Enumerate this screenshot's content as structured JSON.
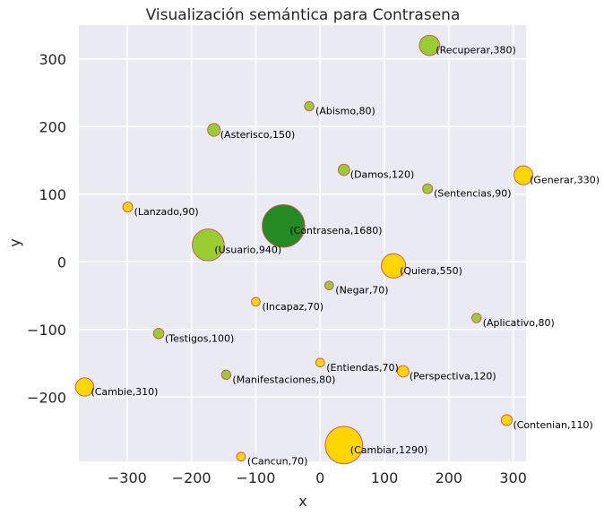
{
  "chart_data": {
    "type": "scatter",
    "title": "Visualización semántica para Contrasena",
    "xlabel": "x",
    "ylabel": "y",
    "xlim": [
      -375,
      320
    ],
    "ylim": [
      -295,
      350
    ],
    "xticks": [
      -300,
      -200,
      -100,
      0,
      100,
      200,
      300
    ],
    "yticks": [
      -200,
      -100,
      0,
      100,
      200,
      300
    ],
    "xtick_labels": [
      "−300",
      "−200",
      "−100",
      "0",
      "100",
      "200",
      "300"
    ],
    "ytick_labels": [
      "−200",
      "−100",
      "0",
      "100",
      "200",
      "300"
    ],
    "grid": true,
    "background_color": "#EAEAF2",
    "grid_color": "#FFFFFF",
    "marker_edge_color": "#CD5C5C",
    "points": [
      {
        "word": "Recuperar",
        "value": 380,
        "x": 170,
        "y": 320,
        "color": "#9ACD32",
        "label": "(Recuperar,380)"
      },
      {
        "word": "Abismo",
        "value": 80,
        "x": -17,
        "y": 230,
        "color": "#9ACD32",
        "label": "(Abismo,80)"
      },
      {
        "word": "Asterisco",
        "value": 150,
        "x": -165,
        "y": 195,
        "color": "#9ACD32",
        "label": "(Asterisco,150)"
      },
      {
        "word": "Damos",
        "value": 120,
        "x": 37,
        "y": 136,
        "color": "#9ACD32",
        "label": "(Damos,120)"
      },
      {
        "word": "Generar",
        "value": 330,
        "x": 316,
        "y": 128,
        "color": "#FFD700",
        "label": "(Generar,330)"
      },
      {
        "word": "Sentencias",
        "value": 90,
        "x": 167,
        "y": 108,
        "color": "#9ACD32",
        "label": "(Sentencias,90)"
      },
      {
        "word": "Lanzado",
        "value": 90,
        "x": -299,
        "y": 81,
        "color": "#FFD700",
        "label": "(Lanzado,90)"
      },
      {
        "word": "Contrasena",
        "value": 1680,
        "x": -57,
        "y": 53,
        "color": "#228B22",
        "label": "(Contrasena,1680)"
      },
      {
        "word": "Usuario",
        "value": 940,
        "x": -174,
        "y": 25,
        "color": "#9ACD32",
        "label": "(Usuario,940)"
      },
      {
        "word": "Quiera",
        "value": 550,
        "x": 114,
        "y": -6,
        "color": "#FFD700",
        "label": "(Quiera,550)"
      },
      {
        "word": "Negar",
        "value": 70,
        "x": 14,
        "y": -35,
        "color": "#9ACD32",
        "label": "(Negar,70)"
      },
      {
        "word": "Incapaz",
        "value": 70,
        "x": -100,
        "y": -59,
        "color": "#FFD700",
        "label": "(Incapaz,70)"
      },
      {
        "word": "Aplicativo",
        "value": 80,
        "x": 243,
        "y": -83,
        "color": "#9ACD32",
        "label": "(Aplicativo,80)"
      },
      {
        "word": "Testigos",
        "value": 100,
        "x": -251,
        "y": -106,
        "color": "#9ACD32",
        "label": "(Testigos,100)"
      },
      {
        "word": "Entiendas",
        "value": 70,
        "x": 0,
        "y": -149,
        "color": "#FFD700",
        "label": "(Entiendas,70)"
      },
      {
        "word": "Perspectiva",
        "value": 120,
        "x": 129,
        "y": -162,
        "color": "#FFD700",
        "label": "(Perspectiva,120)"
      },
      {
        "word": "Manifestaciones",
        "value": 80,
        "x": -146,
        "y": -167,
        "color": "#9ACD32",
        "label": "(Manifestaciones,80)"
      },
      {
        "word": "Cambie",
        "value": 310,
        "x": -366,
        "y": -185,
        "color": "#FFD700",
        "label": "(Cambie,310)"
      },
      {
        "word": "Contenian",
        "value": 110,
        "x": 290,
        "y": -234,
        "color": "#FFD700",
        "label": "(Contenian,110)"
      },
      {
        "word": "Cambiar",
        "value": 1290,
        "x": 37,
        "y": -271,
        "color": "#FFD700",
        "label": "(Cambiar,1290)"
      },
      {
        "word": "Cancun",
        "value": 70,
        "x": -123,
        "y": -288,
        "color": "#FFD700",
        "label": "(Cancun,70)"
      }
    ]
  }
}
